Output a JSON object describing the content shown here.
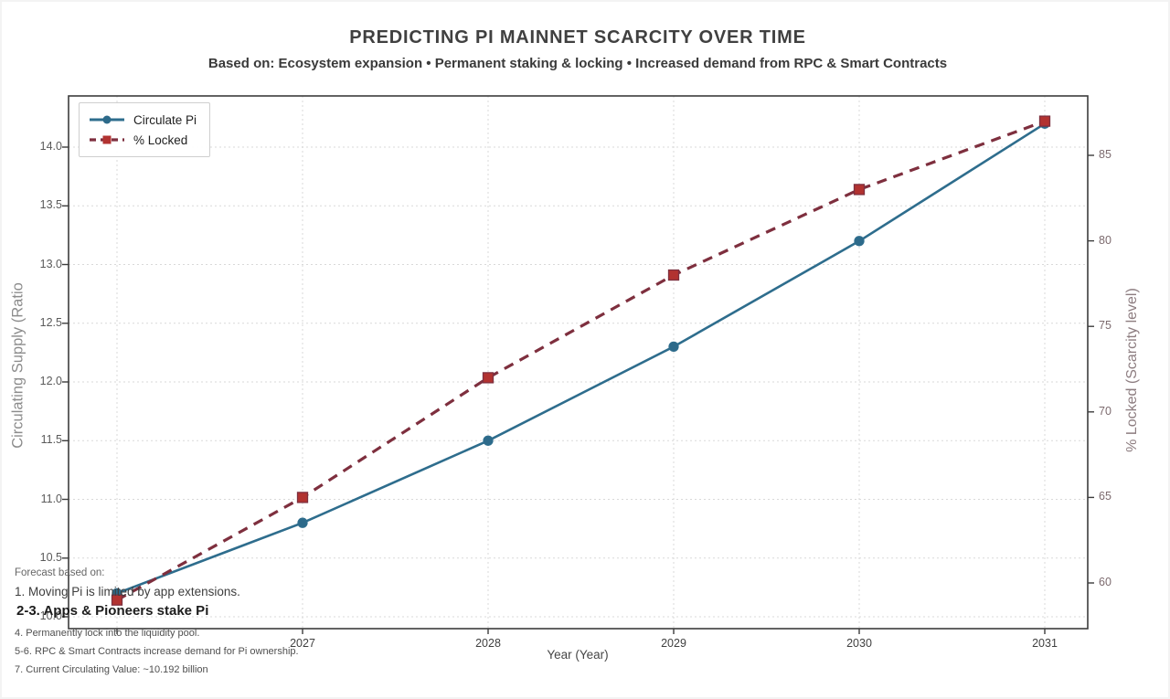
{
  "chart_data": {
    "type": "line",
    "title": "PREDICTING PI MAINNET SCARCITY OVER TIME",
    "subtitle": "Based on: Ecosystem expansion • Permanent staking & locking • Increased demand from RPC & Smart Contracts",
    "xlabel": "Year (Year)",
    "ylabel_left": "Circulating Supply (Ratio",
    "ylabel_right": "% Locked (Scarcity level)",
    "x": [
      2026,
      2027,
      2028,
      2029,
      2030,
      2031
    ],
    "xtick_years_labeled": [
      2027,
      2028,
      2029,
      2030,
      2031
    ],
    "yticks_left": [
      10.0,
      10.5,
      11.0,
      11.5,
      12.0,
      12.5,
      13.0,
      13.5,
      14.0
    ],
    "yticks_right": [
      60,
      65,
      70,
      75,
      80,
      85
    ],
    "ylim_left": [
      10.0,
      14.4
    ],
    "ylim_right": [
      58.5,
      87.7
    ],
    "grid": true,
    "legend_position": "upper-left",
    "series": [
      {
        "name": "Circulate Pi",
        "axis": "left",
        "style": "solid",
        "marker": "circle",
        "color": "#2e6d8d",
        "marker_fill": "#2d6a8a",
        "values": [
          10.2,
          10.8,
          11.5,
          12.3,
          13.2,
          14.2
        ]
      },
      {
        "name": "% Locked",
        "axis": "right",
        "style": "dashed",
        "marker": "square",
        "color": "#7e2f3e",
        "marker_fill": "#b23230",
        "values": [
          59,
          65,
          72,
          78,
          83,
          87
        ]
      }
    ]
  },
  "footnotes": {
    "lines": [
      {
        "text": "Forecast based on:"
      },
      {
        "text": "1. Moving Pi is limited by app extensions."
      },
      {
        "text": "2-3. Apps & Pioneers stake Pi"
      },
      {
        "text": "4. Permanently lock into the liquidity pool."
      },
      {
        "text": "5-6. RPC & Smart Contracts increase demand for Pi ownership."
      },
      {
        "text": "7. Current Circulating Value: ~10.192 billion"
      }
    ]
  }
}
